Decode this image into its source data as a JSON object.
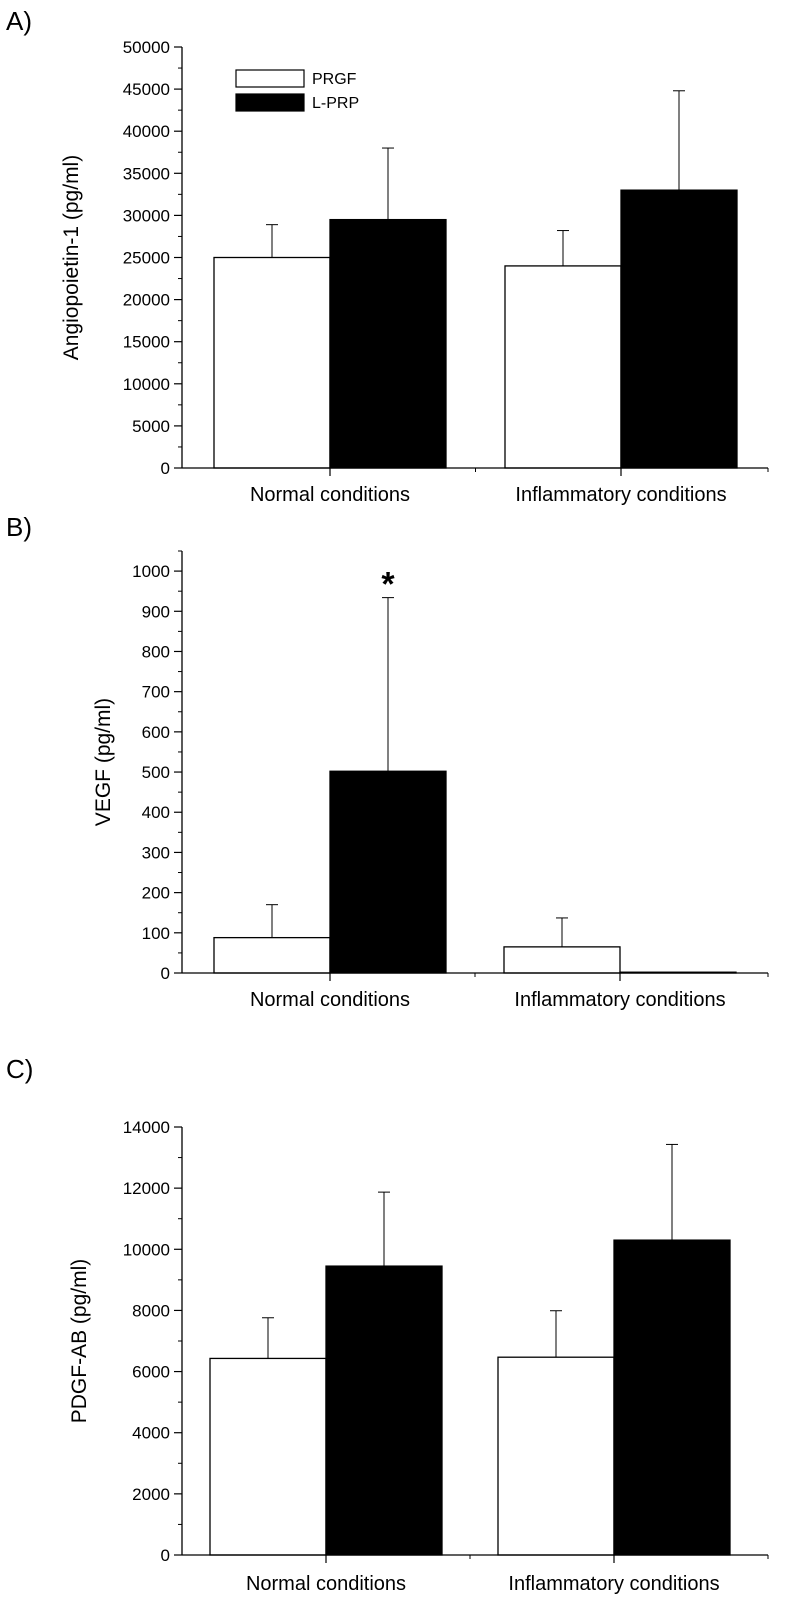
{
  "chart_data": [
    {
      "type": "bar",
      "panel_label": "A)",
      "ylabel": "Angiopoietin-1 (pg/ml)",
      "xlabel": "",
      "categories": [
        "Normal conditions",
        "Inflammatory conditions"
      ],
      "ylim": [
        0,
        50000
      ],
      "yticks": [
        0,
        5000,
        10000,
        15000,
        20000,
        25000,
        30000,
        35000,
        40000,
        45000,
        50000
      ],
      "minor_ticks": true,
      "series": [
        {
          "name": "PRGF",
          "color": "#ffffff",
          "values": [
            25000,
            24000
          ],
          "errors": [
            3900,
            4200
          ]
        },
        {
          "name": "L-PRP",
          "color": "#000000",
          "values": [
            29500,
            33000
          ],
          "errors": [
            8500,
            11800
          ]
        }
      ],
      "legend": {
        "position": "top-left",
        "entries": [
          "PRGF",
          "L-PRP"
        ]
      },
      "annotations": [],
      "grid": false
    },
    {
      "type": "bar",
      "panel_label": "B)",
      "ylabel": "VEGF (pg/ml)",
      "xlabel": "",
      "categories": [
        "Normal conditions",
        "Inflammatory conditions"
      ],
      "ylim": [
        0,
        1050
      ],
      "yticks": [
        0,
        100,
        200,
        300,
        400,
        500,
        600,
        700,
        800,
        900,
        1000
      ],
      "minor_ticks": true,
      "series": [
        {
          "name": "PRGF",
          "color": "#ffffff",
          "values": [
            88,
            65
          ],
          "errors": [
            82,
            72
          ]
        },
        {
          "name": "L-PRP",
          "color": "#000000",
          "values": [
            502,
            2
          ],
          "errors": [
            432,
            0
          ]
        }
      ],
      "annotations": [
        {
          "text": "*",
          "series": 1,
          "category": 0
        }
      ],
      "grid": false
    },
    {
      "type": "bar",
      "panel_label": "C)",
      "ylabel": "PDGF-AB (pg/ml)",
      "xlabel": "",
      "categories": [
        "Normal conditions",
        "Inflammatory conditions"
      ],
      "ylim": [
        0,
        14000
      ],
      "yticks": [
        0,
        2000,
        4000,
        6000,
        8000,
        10000,
        12000,
        14000
      ],
      "minor_ticks": true,
      "series": [
        {
          "name": "PRGF",
          "color": "#ffffff",
          "values": [
            6430,
            6470
          ],
          "errors": [
            1330,
            1520
          ]
        },
        {
          "name": "L-PRP",
          "color": "#000000",
          "values": [
            9450,
            10300
          ],
          "errors": [
            2420,
            3130
          ]
        }
      ],
      "annotations": [],
      "grid": false
    }
  ]
}
